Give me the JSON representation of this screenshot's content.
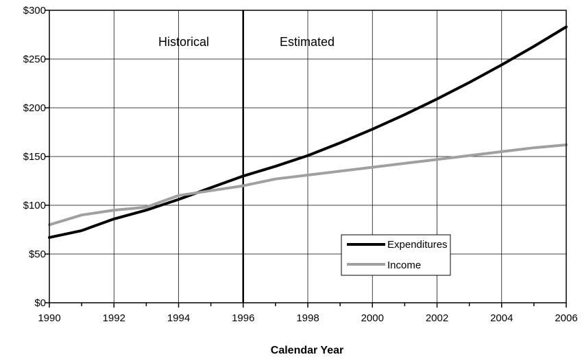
{
  "chart_data": {
    "type": "line",
    "title": "",
    "xlabel": "Calendar Year",
    "ylabel": "",
    "xlim": [
      1990,
      2006
    ],
    "ylim": [
      0,
      300
    ],
    "x_ticks": [
      "1990",
      "1992",
      "1994",
      "1996",
      "1998",
      "2000",
      "2002",
      "2004",
      "2006"
    ],
    "y_ticks": [
      "$0",
      "$50",
      "$100",
      "$150",
      "$200",
      "$250",
      "$300"
    ],
    "grid": true,
    "legend_position": "bottom-right",
    "divider_year": 1996,
    "region_labels": [
      "Historical",
      "Estimated"
    ],
    "x": [
      1990,
      1991,
      1992,
      1993,
      1994,
      1995,
      1996,
      1997,
      1998,
      1999,
      2000,
      2001,
      2002,
      2003,
      2004,
      2005,
      2006
    ],
    "series": [
      {
        "name": "Expenditures",
        "color": "#000000",
        "values": [
          67,
          74,
          86,
          95,
          106,
          118,
          130,
          140,
          151,
          164,
          178,
          193,
          209,
          226,
          244,
          263,
          283
        ]
      },
      {
        "name": "Income",
        "color": "#a0a0a0",
        "values": [
          80,
          90,
          95,
          98,
          110,
          115,
          120,
          127,
          131,
          135,
          139,
          143,
          147,
          151,
          155,
          159,
          162
        ]
      }
    ]
  }
}
